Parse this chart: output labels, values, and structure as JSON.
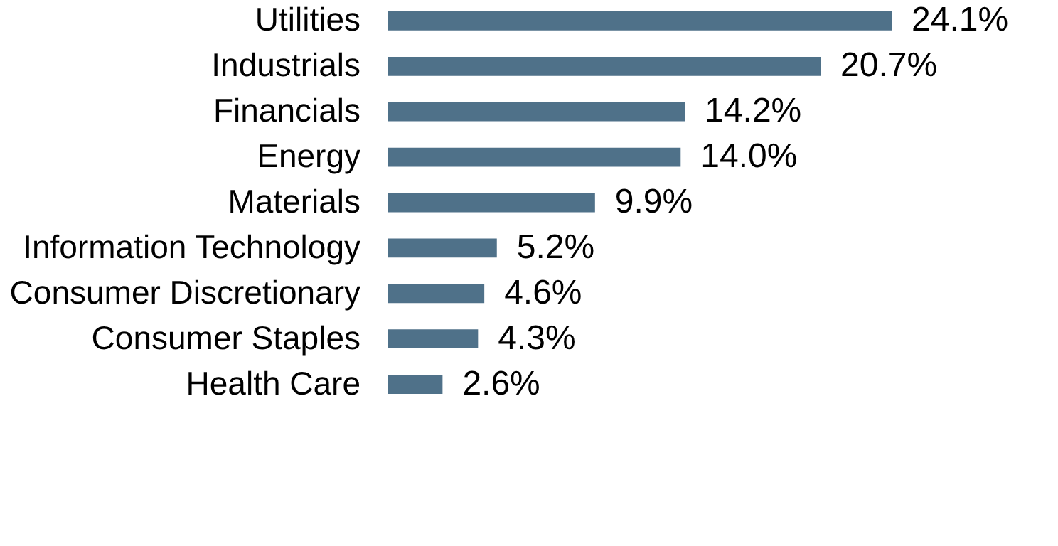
{
  "chart_data": {
    "type": "bar",
    "orientation": "horizontal",
    "categories": [
      "Utilities",
      "Industrials",
      "Financials",
      "Energy",
      "Materials",
      "Information Technology",
      "Consumer Discretionary",
      "Consumer Staples",
      "Health Care"
    ],
    "values": [
      24.1,
      20.7,
      14.2,
      14.0,
      9.9,
      5.2,
      4.6,
      4.3,
      2.6
    ],
    "value_labels": [
      "24.1%",
      "20.7%",
      "14.2%",
      "14.0%",
      "9.9%",
      "5.2%",
      "4.6%",
      "4.3%",
      "2.6%"
    ],
    "color": "#4f7189",
    "tick_labels": "y"
  }
}
